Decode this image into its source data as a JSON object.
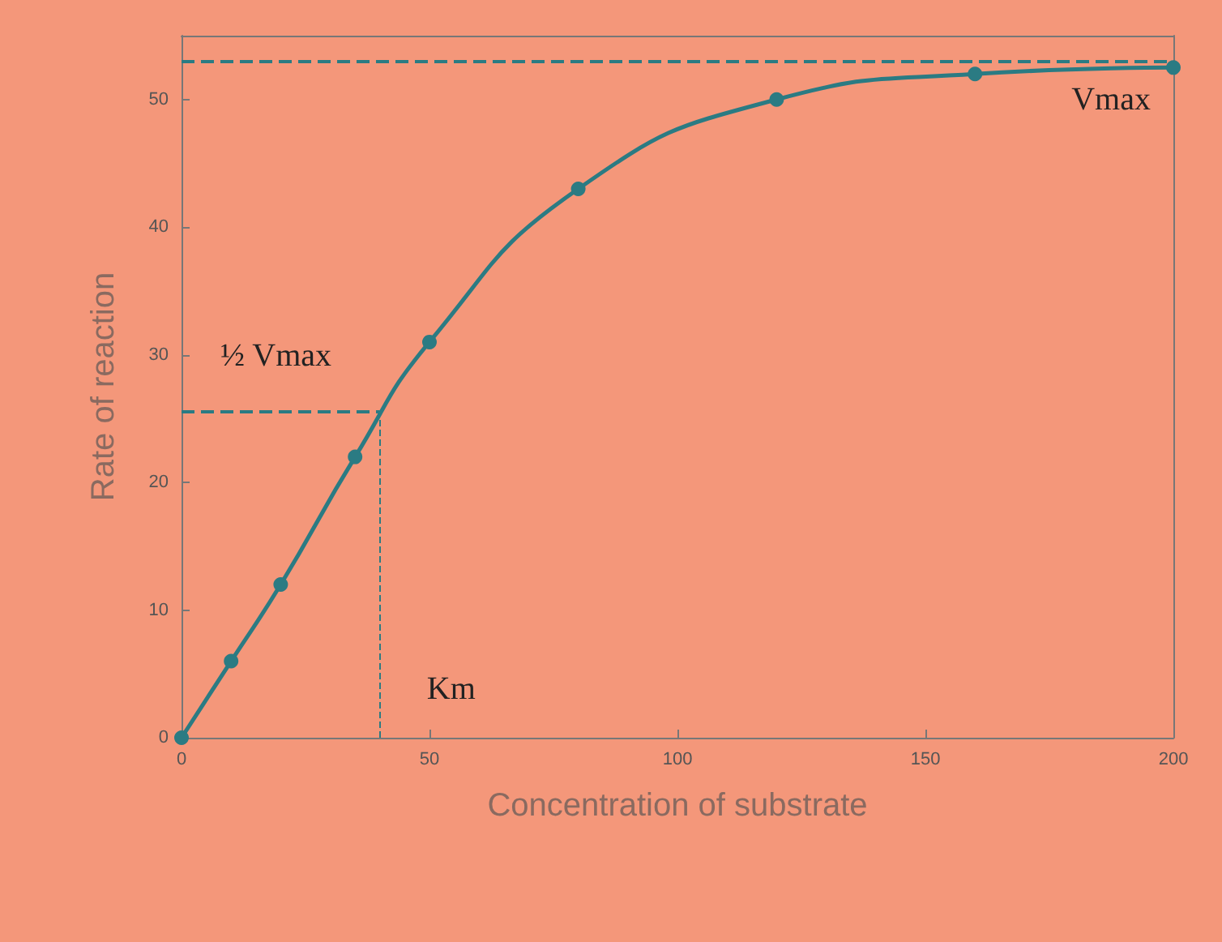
{
  "chart_data": {
    "type": "line",
    "xlabel": "Concentration of substrate",
    "ylabel": "Rate of reaction",
    "x": [
      0,
      10,
      20,
      35,
      50,
      80,
      120,
      160,
      200
    ],
    "series": [
      {
        "color": "#2b7b83",
        "values": [
          0,
          6,
          12,
          22,
          31,
          43,
          50,
          52,
          52.5
        ]
      }
    ],
    "xlim": [
      0,
      200
    ],
    "xticks": [
      0,
      50,
      100,
      150,
      200
    ],
    "ylim": [
      0,
      55
    ],
    "yticks": [
      0,
      10,
      20,
      30,
      40,
      50
    ],
    "grid": false,
    "marker": "circle",
    "line_style": "solid",
    "ref_lines": [
      {
        "axis": "y",
        "value": 53,
        "label": "Vmax",
        "color": "#2b7b83",
        "line_style": "dashed"
      },
      {
        "axis": "y",
        "value": 25.6,
        "label": "½ Vmax",
        "color": "#2b7b83",
        "line_style": "dashed"
      },
      {
        "axis": "x",
        "value": 40,
        "label": "Km",
        "color": "#2b7b83",
        "line_style": "dashed"
      }
    ]
  }
}
